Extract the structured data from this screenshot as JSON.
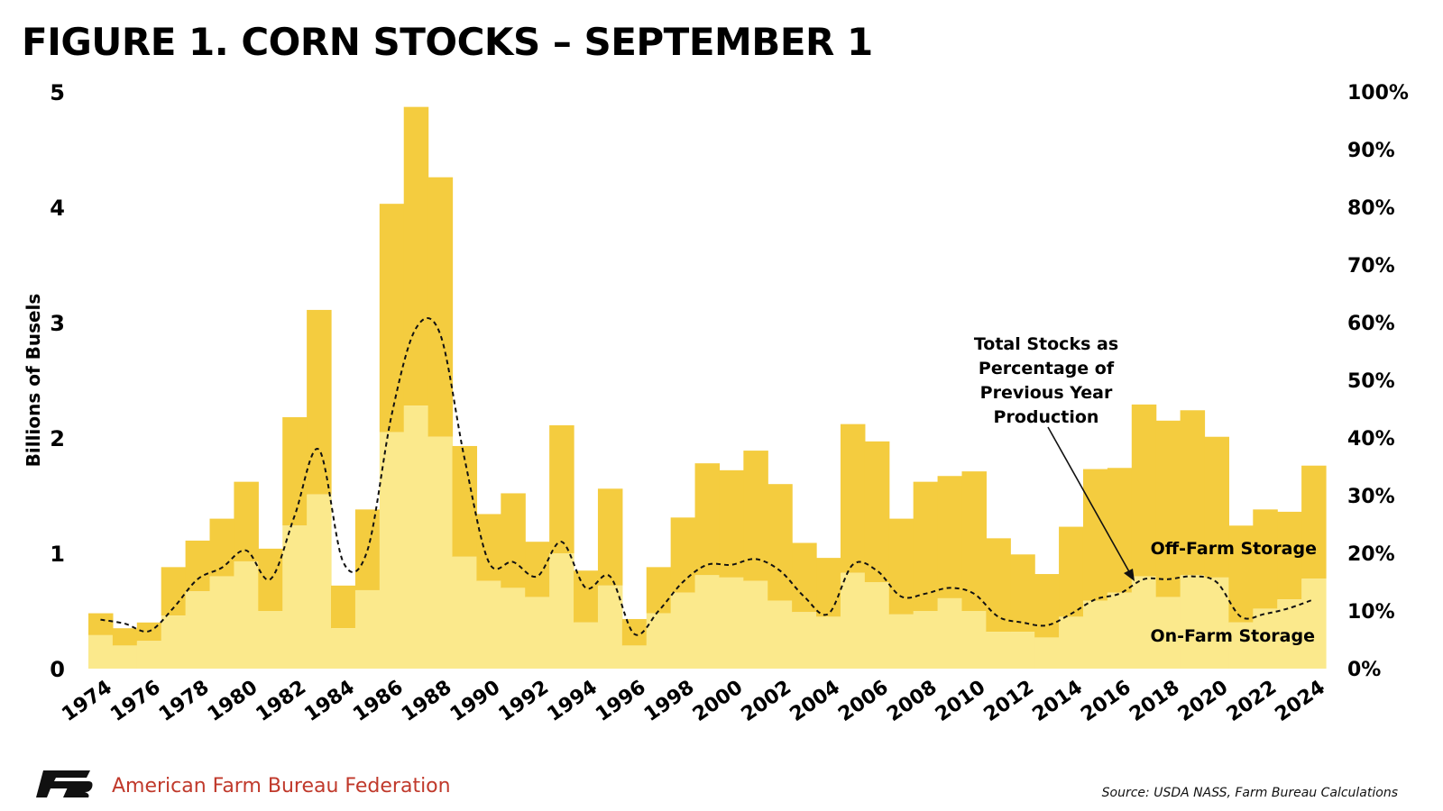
{
  "title": "FIGURE 1. CORN STOCKS – SEPTEMBER 1",
  "org_name": "American Farm Bureau Federation",
  "source": "Source: USDA NASS, Farm Bureau Calculations",
  "colors": {
    "off_farm": "#f4cc3f",
    "on_farm": "#fbe98c",
    "line": "#111111",
    "logo": "#111111",
    "org_text": "#c0392b"
  },
  "chart_data": {
    "type": "bar",
    "stacked": true,
    "years": [
      1974,
      1975,
      1976,
      1977,
      1978,
      1979,
      1980,
      1981,
      1982,
      1983,
      1984,
      1985,
      1986,
      1987,
      1988,
      1989,
      1990,
      1991,
      1992,
      1993,
      1994,
      1995,
      1996,
      1997,
      1998,
      1999,
      2000,
      2001,
      2002,
      2003,
      2004,
      2005,
      2006,
      2007,
      2008,
      2009,
      2010,
      2011,
      2012,
      2013,
      2014,
      2015,
      2016,
      2017,
      2018,
      2019,
      2020,
      2021,
      2022,
      2023,
      2024
    ],
    "series": [
      {
        "name": "On-Farm Storage",
        "values": [
          0.29,
          0.2,
          0.24,
          0.46,
          0.67,
          0.8,
          0.93,
          0.5,
          1.24,
          1.51,
          0.35,
          0.68,
          2.05,
          2.28,
          2.01,
          0.97,
          0.76,
          0.7,
          0.62,
          1.0,
          0.4,
          0.72,
          0.2,
          0.48,
          0.66,
          0.81,
          0.79,
          0.76,
          0.59,
          0.49,
          0.45,
          0.83,
          0.75,
          0.47,
          0.5,
          0.61,
          0.5,
          0.32,
          0.32,
          0.27,
          0.45,
          0.59,
          0.66,
          0.8,
          0.62,
          0.81,
          0.79,
          0.4,
          0.52,
          0.6,
          0.78
        ]
      },
      {
        "name": "Off-Farm Storage",
        "values": [
          0.19,
          0.15,
          0.16,
          0.42,
          0.44,
          0.5,
          0.69,
          0.54,
          0.94,
          1.6,
          0.37,
          0.7,
          1.98,
          2.59,
          2.25,
          0.96,
          0.58,
          0.82,
          0.48,
          1.11,
          0.45,
          0.84,
          0.23,
          0.4,
          0.65,
          0.97,
          0.93,
          1.13,
          1.01,
          0.6,
          0.51,
          1.29,
          1.22,
          0.83,
          1.12,
          1.06,
          1.21,
          0.81,
          0.67,
          0.55,
          0.78,
          1.14,
          1.08,
          1.49,
          1.53,
          1.43,
          1.22,
          0.84,
          0.86,
          0.76,
          0.98
        ]
      }
    ],
    "pct_line": {
      "name": "Total Stocks as Percentage of Previous Year Production",
      "values": [
        8.5,
        7.8,
        6.5,
        10.5,
        15.5,
        17.5,
        20.5,
        15.5,
        26.5,
        38,
        18.5,
        20.5,
        44,
        59,
        58,
        36.5,
        18.5,
        18.5,
        16,
        22,
        14,
        16,
        6,
        10,
        15,
        18,
        18,
        19,
        17,
        12.5,
        9.5,
        18,
        17,
        12.5,
        13,
        14,
        13,
        9,
        8,
        7.5,
        9.5,
        12,
        13,
        15.5,
        15.5,
        16,
        15,
        9,
        9.5,
        10.5,
        12
      ]
    },
    "y_left": {
      "label": "Billions of Busels",
      "min": 0,
      "max": 5,
      "ticks": [
        "0",
        "1",
        "2",
        "3",
        "4",
        "5"
      ]
    },
    "y_right": {
      "min": 0,
      "max": 100,
      "ticks": [
        "0%",
        "10%",
        "20%",
        "30%",
        "40%",
        "50%",
        "60%",
        "70%",
        "80%",
        "90%",
        "100%"
      ]
    },
    "x_tick_labels": [
      "1974",
      "1976",
      "1978",
      "1980",
      "1982",
      "1984",
      "1986",
      "1988",
      "1990",
      "1992",
      "1994",
      "1996",
      "1998",
      "2000",
      "2002",
      "2004",
      "2006",
      "2008",
      "2010",
      "2012",
      "2014",
      "2016",
      "2018",
      "2020",
      "2022",
      "2024"
    ],
    "annotation": {
      "lines": [
        "Total Stocks as",
        "Percentage of",
        "Previous Year",
        "Production"
      ]
    },
    "series_labels": {
      "off_farm": "Off-Farm Storage",
      "on_farm": "On-Farm Storage"
    }
  }
}
